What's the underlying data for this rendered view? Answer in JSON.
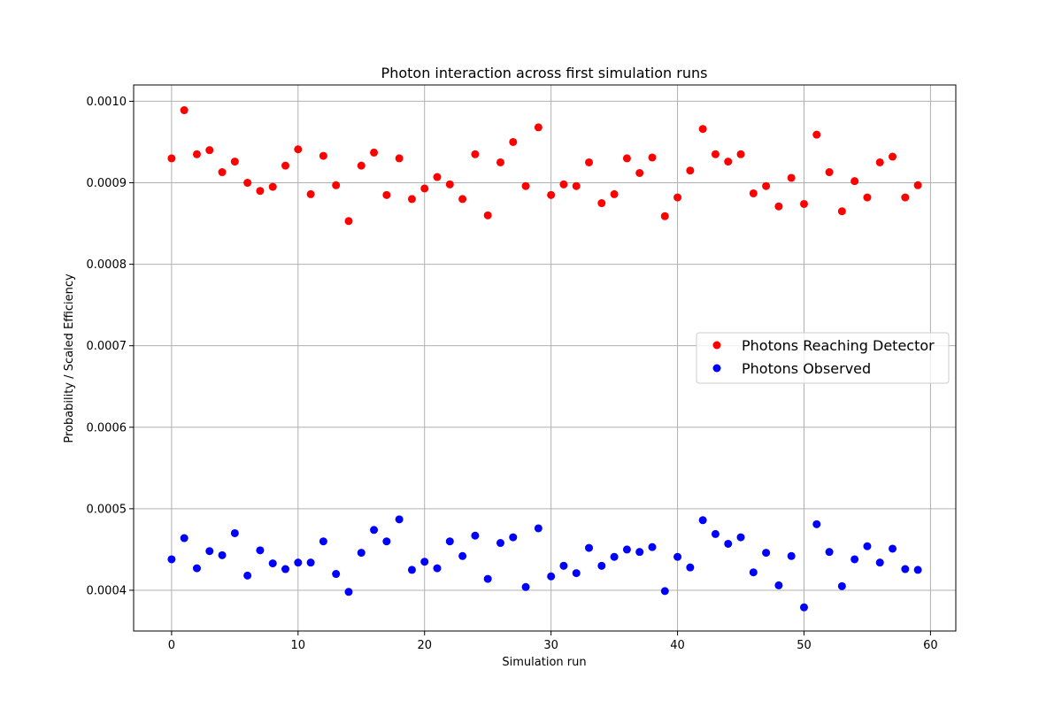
{
  "chart_data": {
    "type": "scatter",
    "title": "Photon interaction across first simulation runs",
    "xlabel": "Simulation run",
    "ylabel": "Probability / Scaled Efficiency",
    "xlim": [
      -3,
      62
    ],
    "ylim": [
      0.00035,
      0.00102
    ],
    "x_ticks": [
      0,
      10,
      20,
      30,
      40,
      50,
      60
    ],
    "y_ticks": [
      0.0004,
      0.0005,
      0.0006,
      0.0007,
      0.0008,
      0.0009,
      0.001
    ],
    "y_tick_labels": [
      "0.0004",
      "0.0005",
      "0.0006",
      "0.0007",
      "0.0008",
      "0.0009",
      "0.0010"
    ],
    "grid": true,
    "legend_position": "center-right",
    "x": [
      0,
      1,
      2,
      3,
      4,
      5,
      6,
      7,
      8,
      9,
      10,
      11,
      12,
      13,
      14,
      15,
      16,
      17,
      18,
      19,
      20,
      21,
      22,
      23,
      24,
      25,
      26,
      27,
      28,
      29,
      30,
      31,
      32,
      33,
      34,
      35,
      36,
      37,
      38,
      39,
      40,
      41,
      42,
      43,
      44,
      45,
      46,
      47,
      48,
      49,
      50,
      51,
      52,
      53,
      54,
      55,
      56,
      57,
      58,
      59
    ],
    "series": [
      {
        "name": "Photons Reaching Detector",
        "color": "#ff0000",
        "values": [
          0.00093,
          0.000989,
          0.000935,
          0.00094,
          0.000913,
          0.000926,
          0.0009,
          0.00089,
          0.000895,
          0.000921,
          0.000941,
          0.000886,
          0.000933,
          0.000897,
          0.000853,
          0.000921,
          0.000937,
          0.000885,
          0.00093,
          0.00088,
          0.000893,
          0.000907,
          0.000898,
          0.00088,
          0.000935,
          0.00086,
          0.000925,
          0.00095,
          0.000896,
          0.000968,
          0.000885,
          0.000898,
          0.000896,
          0.000925,
          0.000875,
          0.000886,
          0.00093,
          0.000912,
          0.000931,
          0.000859,
          0.000882,
          0.000915,
          0.000966,
          0.000935,
          0.000926,
          0.000935,
          0.000887,
          0.000896,
          0.000871,
          0.000906,
          0.000874,
          0.000959,
          0.000913,
          0.000865,
          0.000902,
          0.000882,
          0.000925,
          0.000932,
          0.000882,
          0.000897
        ]
      },
      {
        "name": "Photons Observed",
        "color": "#0000ff",
        "values": [
          0.000438,
          0.000464,
          0.000427,
          0.000448,
          0.000443,
          0.00047,
          0.000418,
          0.000449,
          0.000433,
          0.000426,
          0.000434,
          0.000434,
          0.00046,
          0.00042,
          0.000398,
          0.000446,
          0.000474,
          0.00046,
          0.000487,
          0.000425,
          0.000435,
          0.000427,
          0.00046,
          0.000442,
          0.000467,
          0.000414,
          0.000458,
          0.000465,
          0.000404,
          0.000476,
          0.000417,
          0.00043,
          0.000421,
          0.000452,
          0.00043,
          0.000441,
          0.00045,
          0.000447,
          0.000453,
          0.000399,
          0.000441,
          0.000428,
          0.000486,
          0.000469,
          0.000457,
          0.000465,
          0.000422,
          0.000446,
          0.000406,
          0.000442,
          0.000379,
          0.000481,
          0.000447,
          0.000405,
          0.000438,
          0.000454,
          0.000434,
          0.000451,
          0.000426,
          0.000425
        ]
      }
    ]
  }
}
